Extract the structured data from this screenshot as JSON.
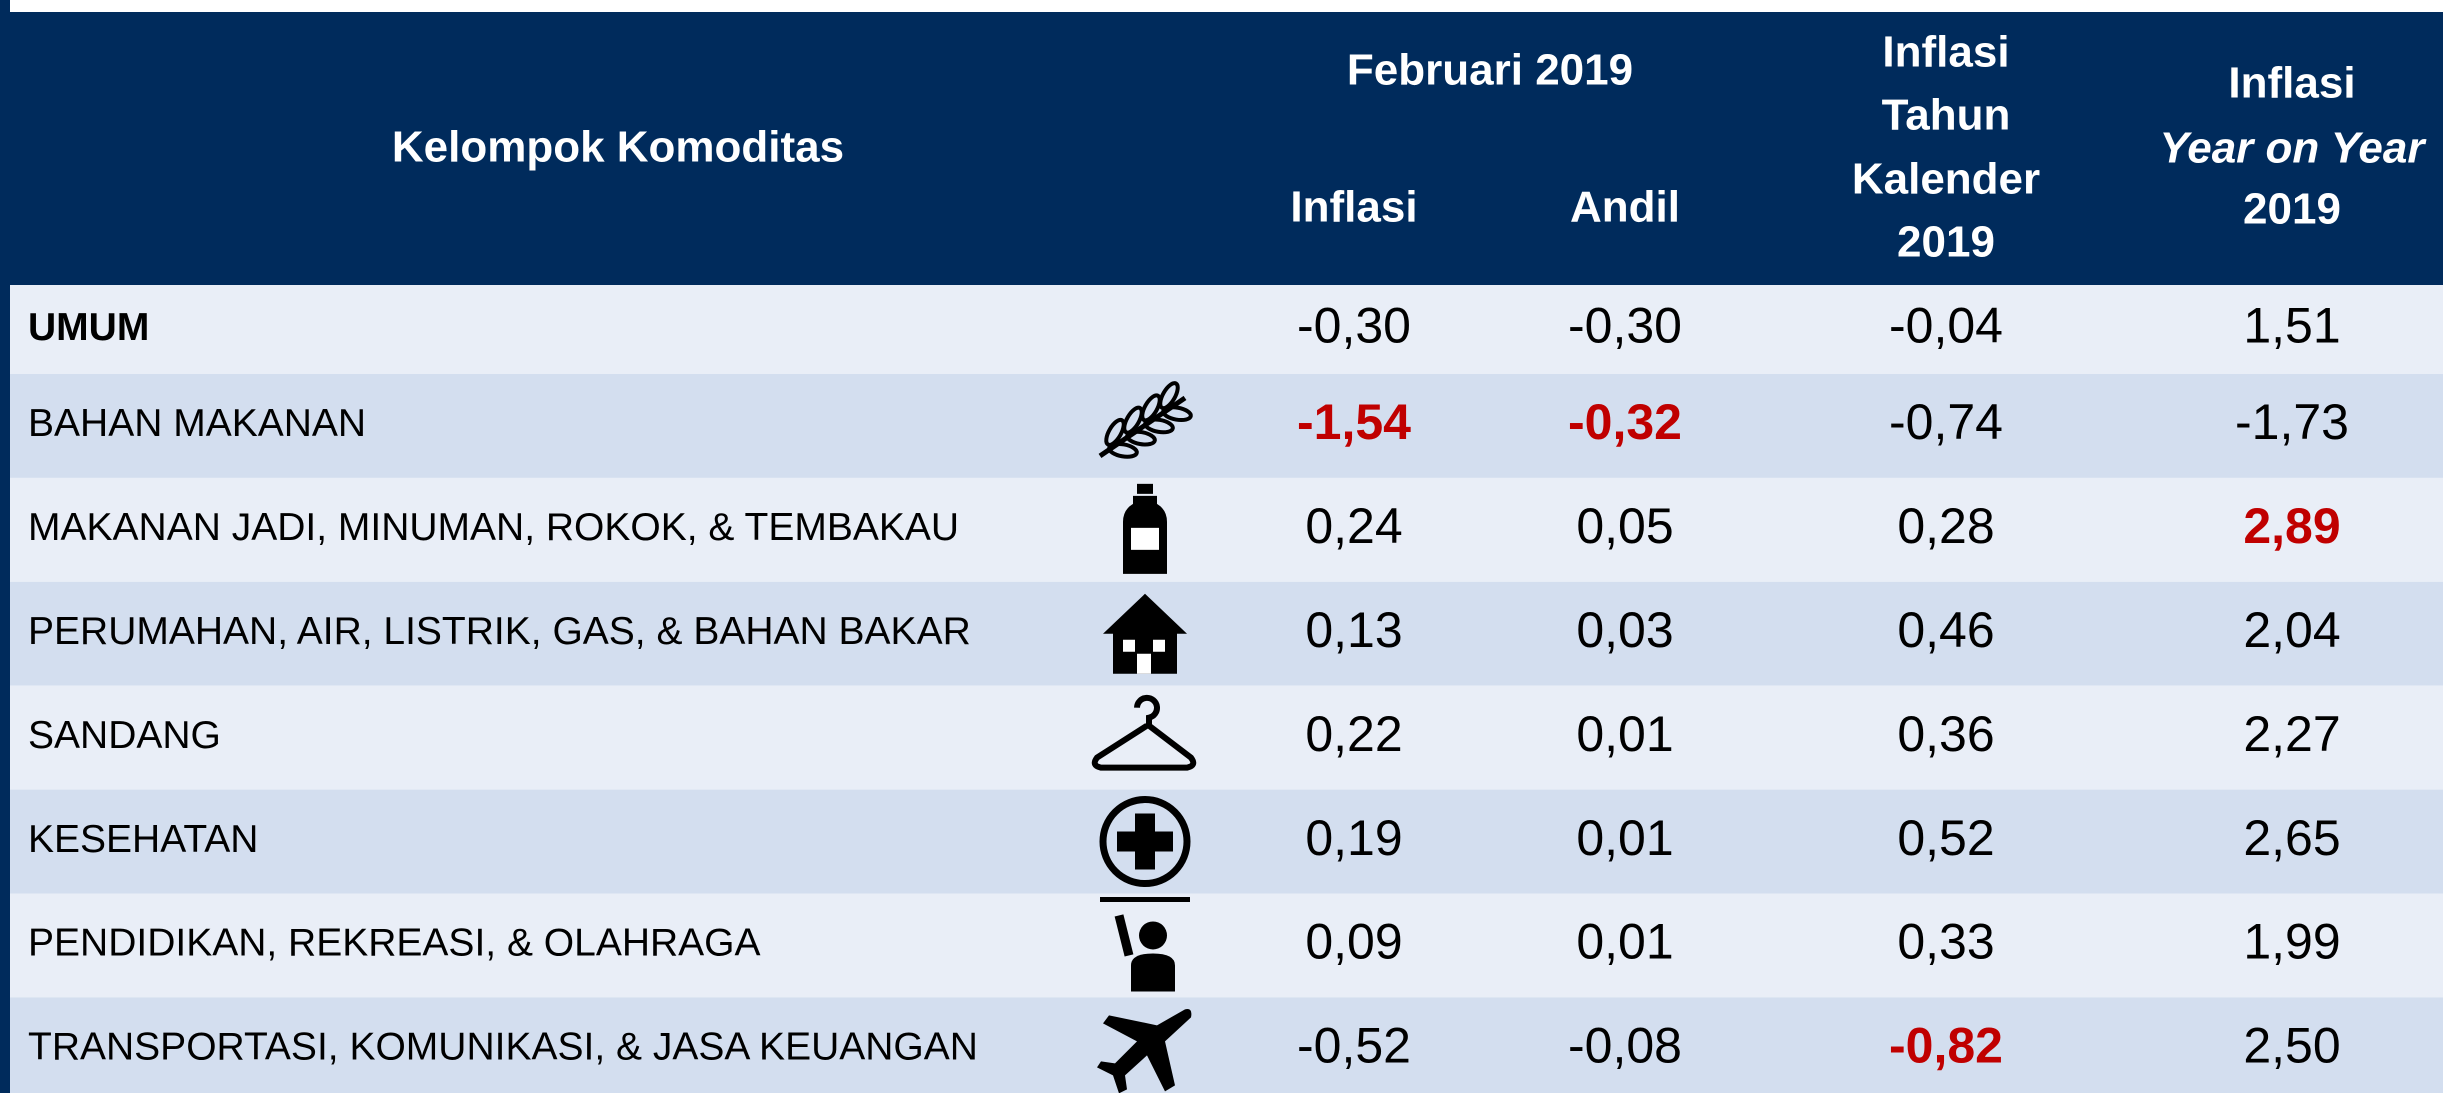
{
  "header": {
    "group": "Kelompok Komoditas",
    "period": "Februari 2019",
    "monthly": [
      "Inflasi",
      "Andil"
    ],
    "calendar": [
      "Inflasi",
      "Tahun",
      "Kalender",
      "2019"
    ],
    "yoy": [
      "Inflasi",
      "Year on Year",
      "2019"
    ]
  },
  "highlight_color": "#c00000",
  "rows": [
    {
      "label": "UMUM",
      "bold": true,
      "values": [
        "-0,30",
        "-0,30",
        "-0,04",
        "1,51"
      ],
      "highlight": []
    },
    {
      "label": "BAHAN MAKANAN",
      "values": [
        "-1,54",
        "-0,32",
        "-0,74",
        "-1,73"
      ],
      "highlight": [
        0,
        1
      ]
    },
    {
      "label": "MAKANAN JADI, MINUMAN, ROKOK, & TEMBAKAU",
      "values": [
        "0,24",
        "0,05",
        "0,28",
        "2,89"
      ],
      "highlight": [
        3
      ]
    },
    {
      "label": "PERUMAHAN, AIR, LISTRIK, GAS, & BAHAN BAKAR",
      "values": [
        "0,13",
        "0,03",
        "0,46",
        "2,04"
      ],
      "highlight": []
    },
    {
      "label": "SANDANG",
      "values": [
        "0,22",
        "0,01",
        "0,36",
        "2,27"
      ],
      "highlight": []
    },
    {
      "label": "KESEHATAN",
      "values": [
        "0,19",
        "0,01",
        "0,52",
        "2,65"
      ],
      "highlight": []
    },
    {
      "label": "PENDIDIKAN, REKREASI, & OLAHRAGA",
      "values": [
        "0,09",
        "0,01",
        "0,33",
        "1,99"
      ],
      "highlight": []
    },
    {
      "label": "TRANSPORTASI, KOMUNIKASI, & JASA KEUANGAN",
      "values": [
        "-0,52",
        "-0,08",
        "-0,82",
        "2,50"
      ],
      "highlight": [
        2
      ]
    }
  ]
}
